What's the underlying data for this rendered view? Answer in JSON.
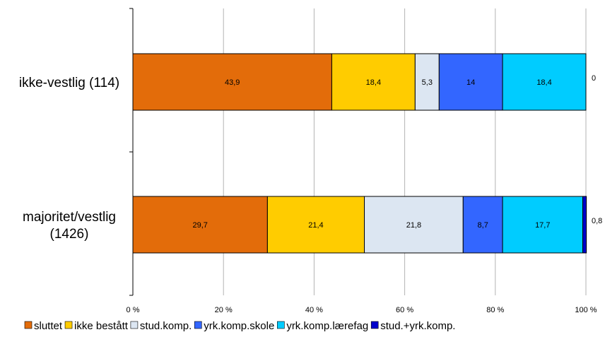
{
  "chart_data": {
    "type": "bar",
    "orientation": "horizontal",
    "stacked": true,
    "categories": [
      "ikke-vestlig (114)",
      "majoritet/vestlig (1426)"
    ],
    "category_lines": [
      [
        "ikke-vestlig (114)"
      ],
      [
        "majoritet/vestlig",
        "(1426)"
      ]
    ],
    "series": [
      {
        "name": "sluttet",
        "color": "#E36C0A",
        "values": [
          43.9,
          29.7
        ],
        "labels": [
          "43,9",
          "29,7"
        ]
      },
      {
        "name": "ikke bestått",
        "color": "#FFCC00",
        "values": [
          18.4,
          21.4
        ],
        "labels": [
          "18,4",
          "21,4"
        ]
      },
      {
        "name": "stud.komp.",
        "color": "#DCE6F2",
        "values": [
          5.3,
          21.8
        ],
        "labels": [
          "5,3",
          "21,8"
        ]
      },
      {
        "name": "yrk.komp.skole",
        "color": "#3366FF",
        "values": [
          14,
          8.7
        ],
        "labels": [
          "14",
          "8,7"
        ]
      },
      {
        "name": "yrk.komp.lærefag",
        "color": "#00CCFF",
        "values": [
          18.4,
          17.7
        ],
        "labels": [
          "18,4",
          "17,7"
        ]
      },
      {
        "name": "stud.+yrk.komp.",
        "color": "#0000CC",
        "values": [
          0,
          0.8
        ],
        "labels": [
          "0",
          "0,8"
        ]
      }
    ],
    "xlim": [
      0,
      100
    ],
    "xticks": [
      "0 %",
      "20 %",
      "40 %",
      "60 %",
      "80 %",
      "100 %"
    ],
    "xlabel": "",
    "ylabel": "",
    "title": "",
    "grid": true,
    "legend_position": "bottom"
  }
}
